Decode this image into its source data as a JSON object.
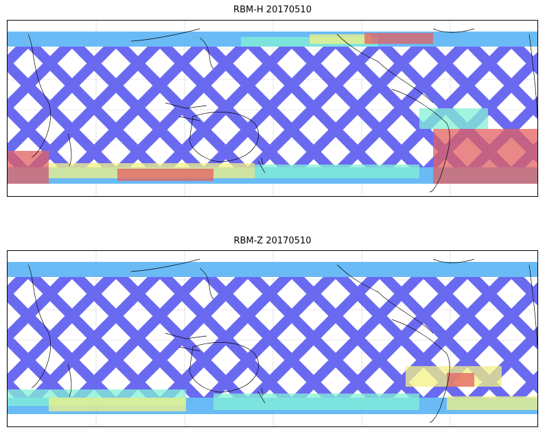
{
  "panels": [
    {
      "id": "top",
      "title": "RBM-H 20170510"
    },
    {
      "id": "bottom",
      "title": "RBM-Z 20170510"
    }
  ],
  "colors": {
    "low": "#5a5af0",
    "mid_low": "#5ab4f5",
    "mid": "#78f0d2",
    "mid_high": "#f0f078",
    "high": "#e05050",
    "coast": "#000000",
    "grid": "#d0d0d0"
  }
}
